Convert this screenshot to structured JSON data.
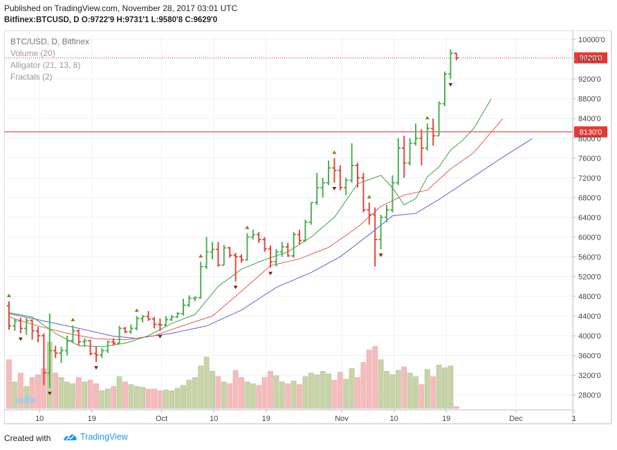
{
  "header": {
    "published": "Published on TradingView.com, November 28, 2017 03:01 UTC",
    "symbol": "Bitfinex:BTCUSD, D",
    "ohlc": "O:9722'9 H:9731'1 L:9580'8 C:9629'0"
  },
  "legend": {
    "title": "BTC/USD, D, Bitfinex",
    "volume": "Volume (20)",
    "alligator": "Alligator (21, 13, 8)",
    "fractals": "Fractals (2)"
  },
  "footer": {
    "created": "Created with",
    "brand": "TradingView"
  },
  "colors": {
    "up": "#4caf50",
    "down": "#e0483a",
    "jaw": "#5b5be0",
    "teeth": "#e8554e",
    "lips": "#3f9e3f",
    "vol_up": "#c8d4a8",
    "vol_down": "#f4bcbc",
    "hline": "#d32f2f",
    "last_label": "#e53935"
  },
  "chart_data": {
    "type": "ohlc",
    "title": "BTC/USD, D, Bitfinex",
    "ylim": [
      2500,
      10100
    ],
    "y_ticks": [
      "2800'0",
      "3200'0",
      "3600'0",
      "4000'0",
      "4400'0",
      "4800'0",
      "5200'0",
      "5600'0",
      "6000'0",
      "6400'0",
      "6800'0",
      "7200'0",
      "7600'0",
      "8000'0",
      "8400'0",
      "8800'0",
      "9200'0",
      "9600'0",
      "10000'0"
    ],
    "y_tick_values": [
      2800,
      3200,
      3600,
      4000,
      4400,
      4800,
      5200,
      5600,
      6000,
      6400,
      6800,
      7200,
      7600,
      8000,
      8400,
      8800,
      9200,
      9600,
      10000
    ],
    "x_ticks": [
      {
        "label": "10",
        "index": 3
      },
      {
        "label": "19",
        "index": 12
      },
      {
        "label": "Oct",
        "index": 24
      },
      {
        "label": "10",
        "index": 33
      },
      {
        "label": "19",
        "index": 42
      },
      {
        "label": "Nov",
        "index": 55
      },
      {
        "label": "10",
        "index": 64
      },
      {
        "label": "19",
        "index": 73
      },
      {
        "label": "Dec",
        "index": 85
      },
      {
        "label": "1",
        "index": 95
      }
    ],
    "hline": {
      "value": 8130,
      "label": "8130'0"
    },
    "last_price": {
      "value": 9629,
      "label": "9629'0"
    },
    "bars": [
      {
        "o": 4610,
        "h": 4700,
        "l": 4120,
        "c": 4200,
        "v": 55
      },
      {
        "o": 4200,
        "h": 4350,
        "l": 4100,
        "c": 4300,
        "v": 30
      },
      {
        "o": 4300,
        "h": 4370,
        "l": 4050,
        "c": 4150,
        "v": 40
      },
      {
        "o": 4150,
        "h": 4360,
        "l": 4020,
        "c": 4310,
        "v": 25
      },
      {
        "o": 4310,
        "h": 4330,
        "l": 3920,
        "c": 4100,
        "v": 35
      },
      {
        "o": 4100,
        "h": 4180,
        "l": 3870,
        "c": 4000,
        "v": 38
      },
      {
        "o": 4000,
        "h": 4050,
        "l": 3000,
        "c": 3250,
        "v": 45
      },
      {
        "o": 3250,
        "h": 4450,
        "l": 2950,
        "c": 3700,
        "v": 75
      },
      {
        "o": 3700,
        "h": 3800,
        "l": 3550,
        "c": 3650,
        "v": 40
      },
      {
        "o": 3650,
        "h": 3780,
        "l": 3450,
        "c": 3700,
        "v": 35
      },
      {
        "o": 3700,
        "h": 4000,
        "l": 3600,
        "c": 3900,
        "v": 30
      },
      {
        "o": 3900,
        "h": 4210,
        "l": 3850,
        "c": 4100,
        "v": 28
      },
      {
        "o": 4100,
        "h": 4130,
        "l": 3800,
        "c": 3880,
        "v": 35
      },
      {
        "o": 3880,
        "h": 3950,
        "l": 3780,
        "c": 3900,
        "v": 30
      },
      {
        "o": 3900,
        "h": 3920,
        "l": 3600,
        "c": 3640,
        "v": 32
      },
      {
        "o": 3640,
        "h": 3780,
        "l": 3470,
        "c": 3610,
        "v": 28
      },
      {
        "o": 3610,
        "h": 3750,
        "l": 3550,
        "c": 3700,
        "v": 20
      },
      {
        "o": 3700,
        "h": 3900,
        "l": 3650,
        "c": 3880,
        "v": 22
      },
      {
        "o": 3880,
        "h": 3950,
        "l": 3800,
        "c": 3850,
        "v": 25
      },
      {
        "o": 3850,
        "h": 4200,
        "l": 3840,
        "c": 4150,
        "v": 36
      },
      {
        "o": 4150,
        "h": 4180,
        "l": 4050,
        "c": 4080,
        "v": 30
      },
      {
        "o": 4080,
        "h": 4230,
        "l": 4040,
        "c": 4150,
        "v": 27
      },
      {
        "o": 4150,
        "h": 4400,
        "l": 4110,
        "c": 4350,
        "v": 25
      },
      {
        "o": 4350,
        "h": 4420,
        "l": 4270,
        "c": 4390,
        "v": 24
      },
      {
        "o": 4390,
        "h": 4500,
        "l": 4300,
        "c": 4340,
        "v": 22
      },
      {
        "o": 4340,
        "h": 4380,
        "l": 4150,
        "c": 4230,
        "v": 22
      },
      {
        "o": 4230,
        "h": 4350,
        "l": 4100,
        "c": 4220,
        "v": 20
      },
      {
        "o": 4220,
        "h": 4400,
        "l": 4180,
        "c": 4330,
        "v": 21
      },
      {
        "o": 4330,
        "h": 4420,
        "l": 4300,
        "c": 4380,
        "v": 20
      },
      {
        "o": 4380,
        "h": 4480,
        "l": 4360,
        "c": 4450,
        "v": 23
      },
      {
        "o": 4450,
        "h": 4750,
        "l": 4410,
        "c": 4620,
        "v": 26
      },
      {
        "o": 4620,
        "h": 4820,
        "l": 4580,
        "c": 4760,
        "v": 32
      },
      {
        "o": 4760,
        "h": 4800,
        "l": 4700,
        "c": 4770,
        "v": 35
      },
      {
        "o": 4770,
        "h": 5500,
        "l": 4750,
        "c": 5400,
        "v": 48
      },
      {
        "o": 5400,
        "h": 6000,
        "l": 5350,
        "c": 5700,
        "v": 58
      },
      {
        "o": 5700,
        "h": 5900,
        "l": 5550,
        "c": 5750,
        "v": 42
      },
      {
        "o": 5750,
        "h": 5900,
        "l": 5400,
        "c": 5430,
        "v": 36
      },
      {
        "o": 5430,
        "h": 5840,
        "l": 5430,
        "c": 5780,
        "v": 30
      },
      {
        "o": 5780,
        "h": 5800,
        "l": 5580,
        "c": 5630,
        "v": 28
      },
      {
        "o": 5630,
        "h": 5680,
        "l": 5100,
        "c": 5600,
        "v": 43
      },
      {
        "o": 5600,
        "h": 5650,
        "l": 5480,
        "c": 5540,
        "v": 35
      },
      {
        "o": 5540,
        "h": 6080,
        "l": 5520,
        "c": 6000,
        "v": 30
      },
      {
        "o": 6000,
        "h": 6150,
        "l": 5950,
        "c": 6050,
        "v": 28
      },
      {
        "o": 6050,
        "h": 6100,
        "l": 5880,
        "c": 5950,
        "v": 26
      },
      {
        "o": 5950,
        "h": 6000,
        "l": 5700,
        "c": 5760,
        "v": 35
      },
      {
        "o": 5760,
        "h": 5830,
        "l": 5380,
        "c": 5500,
        "v": 42
      },
      {
        "o": 5500,
        "h": 5760,
        "l": 5400,
        "c": 5700,
        "v": 37
      },
      {
        "o": 5700,
        "h": 5900,
        "l": 5600,
        "c": 5800,
        "v": 30
      },
      {
        "o": 5800,
        "h": 5880,
        "l": 5600,
        "c": 5620,
        "v": 28
      },
      {
        "o": 5620,
        "h": 6100,
        "l": 5580,
        "c": 6050,
        "v": 31
      },
      {
        "o": 6050,
        "h": 6150,
        "l": 5850,
        "c": 5930,
        "v": 27
      },
      {
        "o": 5930,
        "h": 6350,
        "l": 5900,
        "c": 6300,
        "v": 36
      },
      {
        "o": 6300,
        "h": 6700,
        "l": 6250,
        "c": 6700,
        "v": 40
      },
      {
        "o": 6700,
        "h": 7300,
        "l": 6650,
        "c": 7000,
        "v": 38
      },
      {
        "o": 7000,
        "h": 7200,
        "l": 6800,
        "c": 7100,
        "v": 42
      },
      {
        "o": 7100,
        "h": 7550,
        "l": 7050,
        "c": 7400,
        "v": 39
      },
      {
        "o": 7400,
        "h": 7600,
        "l": 7100,
        "c": 7350,
        "v": 32
      },
      {
        "o": 7350,
        "h": 7450,
        "l": 6950,
        "c": 7000,
        "v": 41
      },
      {
        "o": 7000,
        "h": 7200,
        "l": 6850,
        "c": 7150,
        "v": 33
      },
      {
        "o": 7150,
        "h": 7900,
        "l": 7100,
        "c": 7450,
        "v": 45
      },
      {
        "o": 7450,
        "h": 7500,
        "l": 7000,
        "c": 7200,
        "v": 35
      },
      {
        "o": 7200,
        "h": 7300,
        "l": 6500,
        "c": 6550,
        "v": 52
      },
      {
        "o": 6550,
        "h": 6700,
        "l": 6250,
        "c": 6450,
        "v": 66
      },
      {
        "o": 6450,
        "h": 6600,
        "l": 5400,
        "c": 5950,
        "v": 70
      },
      {
        "o": 5950,
        "h": 6450,
        "l": 5750,
        "c": 6400,
        "v": 55
      },
      {
        "o": 6400,
        "h": 6650,
        "l": 6300,
        "c": 6550,
        "v": 42
      },
      {
        "o": 6550,
        "h": 7250,
        "l": 6500,
        "c": 7100,
        "v": 38
      },
      {
        "o": 7100,
        "h": 8000,
        "l": 7050,
        "c": 7800,
        "v": 43
      },
      {
        "o": 7800,
        "h": 8050,
        "l": 7200,
        "c": 7500,
        "v": 47
      },
      {
        "o": 7500,
        "h": 8000,
        "l": 7450,
        "c": 7900,
        "v": 40
      },
      {
        "o": 7900,
        "h": 8300,
        "l": 7850,
        "c": 8000,
        "v": 36
      },
      {
        "o": 8000,
        "h": 8180,
        "l": 7450,
        "c": 7800,
        "v": 27
      },
      {
        "o": 7800,
        "h": 8300,
        "l": 7750,
        "c": 8200,
        "v": 44
      },
      {
        "o": 8200,
        "h": 8400,
        "l": 7850,
        "c": 8050,
        "v": 36
      },
      {
        "o": 8050,
        "h": 8750,
        "l": 8050,
        "c": 8700,
        "v": 49
      },
      {
        "o": 8700,
        "h": 9350,
        "l": 8650,
        "c": 9300,
        "v": 46
      },
      {
        "o": 9300,
        "h": 9800,
        "l": 9200,
        "c": 9722,
        "v": 48
      },
      {
        "o": 9722,
        "h": 9731,
        "l": 9580,
        "c": 9629,
        "v": 2
      }
    ],
    "fractals_up": [
      0,
      11,
      22,
      33,
      41,
      56,
      62,
      72
    ],
    "fractals_down": [
      2,
      7,
      15,
      26,
      39,
      45,
      56,
      64,
      76
    ],
    "jaw": [
      [
        0,
        4450
      ],
      [
        6,
        4300
      ],
      [
        12,
        4150
      ],
      [
        18,
        3990
      ],
      [
        22,
        3950
      ],
      [
        28,
        4050
      ],
      [
        34,
        4200
      ],
      [
        40,
        4520
      ],
      [
        46,
        4980
      ],
      [
        52,
        5280
      ],
      [
        57,
        5600
      ],
      [
        62,
        6050
      ],
      [
        66,
        6430
      ],
      [
        70,
        6480
      ],
      [
        74,
        6760
      ],
      [
        79,
        7150
      ],
      [
        85,
        7620
      ],
      [
        90,
        7990
      ]
    ],
    "teeth": [
      [
        0,
        4380
      ],
      [
        5,
        4200
      ],
      [
        10,
        4050
      ],
      [
        15,
        3940
      ],
      [
        20,
        3920
      ],
      [
        25,
        4000
      ],
      [
        30,
        4210
      ],
      [
        35,
        4400
      ],
      [
        40,
        4900
      ],
      [
        45,
        5420
      ],
      [
        50,
        5560
      ],
      [
        55,
        5790
      ],
      [
        60,
        6200
      ],
      [
        64,
        6620
      ],
      [
        68,
        6850
      ],
      [
        72,
        6950
      ],
      [
        76,
        7380
      ],
      [
        80,
        7710
      ],
      [
        85,
        8400
      ]
    ],
    "lips": [
      [
        0,
        4470
      ],
      [
        4,
        4380
      ],
      [
        8,
        4050
      ],
      [
        12,
        3800
      ],
      [
        16,
        3780
      ],
      [
        20,
        3850
      ],
      [
        24,
        4000
      ],
      [
        28,
        4250
      ],
      [
        32,
        4430
      ],
      [
        36,
        5000
      ],
      [
        40,
        5350
      ],
      [
        44,
        5540
      ],
      [
        48,
        5700
      ],
      [
        52,
        6000
      ],
      [
        56,
        6400
      ],
      [
        60,
        7080
      ],
      [
        64,
        7250
      ],
      [
        66,
        7000
      ],
      [
        68,
        6650
      ],
      [
        70,
        6780
      ],
      [
        72,
        7220
      ],
      [
        74,
        7420
      ],
      [
        76,
        7760
      ],
      [
        78,
        7950
      ],
      [
        80,
        8200
      ],
      [
        83,
        8800
      ]
    ]
  }
}
